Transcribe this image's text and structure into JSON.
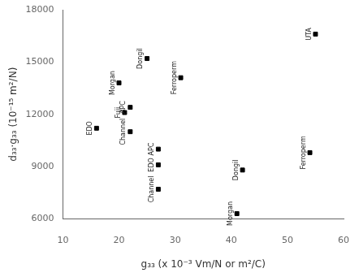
{
  "chart_data": {
    "type": "scatter",
    "x": [
      16,
      20,
      21,
      22,
      22,
      25,
      27,
      27,
      27,
      31,
      42,
      41,
      54,
      55
    ],
    "values": [
      11200,
      13800,
      12100,
      12400,
      11000,
      15200,
      10000,
      9100,
      7700,
      14100,
      8800,
      6300,
      9800,
      16600
    ],
    "labels": [
      "EDO",
      "Morgan",
      "Fuji",
      "APC",
      "Channel",
      "Dongil",
      "APC",
      "EDO",
      "Channel",
      "Ferroperm",
      "Dongil",
      "Morgan",
      "Ferroperm",
      "UTA"
    ],
    "xlabel": "g₃₃ (x 10⁻³ Vm/N or m²/C)",
    "ylabel": "d₃₃·g₃₃ (10⁻¹⁵ m²/N)",
    "xlim": [
      10,
      60
    ],
    "ylim": [
      6000,
      18000
    ],
    "xticks": [
      10,
      20,
      30,
      40,
      50,
      60
    ],
    "yticks": [
      6000,
      9000,
      12000,
      15000,
      18000
    ],
    "color": "black",
    "marker": "square",
    "grid": false
  }
}
